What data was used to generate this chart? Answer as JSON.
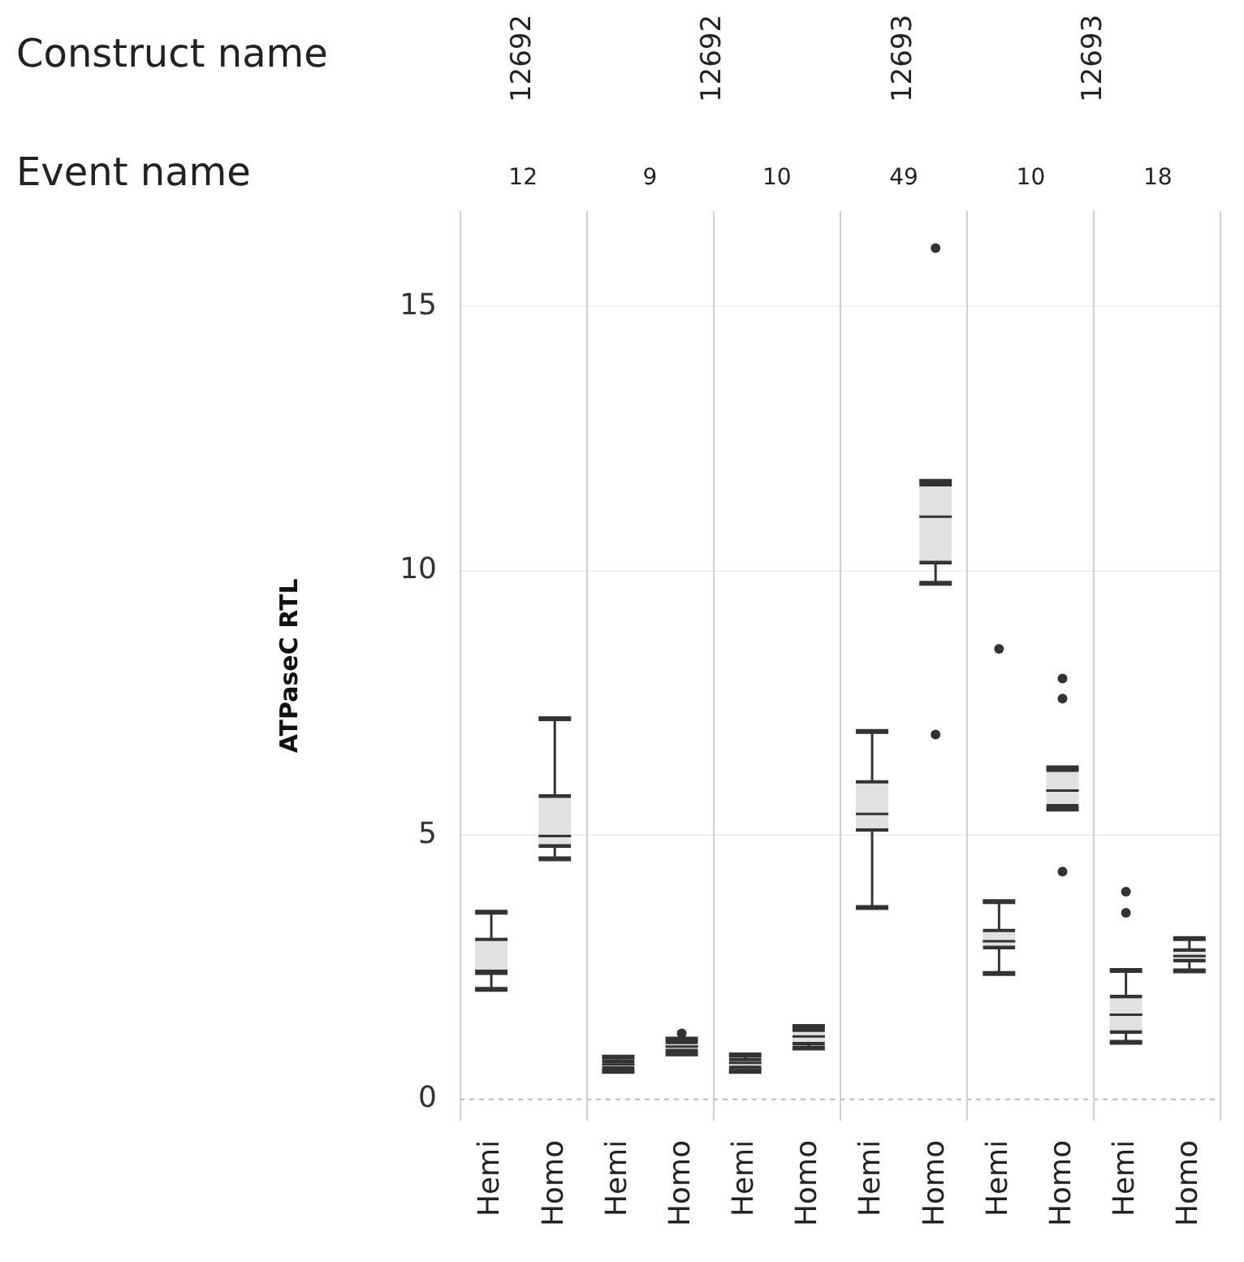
{
  "chart_data": {
    "type": "box",
    "ylabel": "ATPaseC RTL",
    "categories": [
      "Hemi",
      "Homo",
      "Hemi",
      "Homo",
      "Hemi",
      "Homo",
      "Hemi",
      "Homo",
      "Hemi",
      "Homo",
      "Hemi",
      "Homo"
    ],
    "annotations": [
      "Construct name",
      "Event name",
      "12692",
      "12692",
      "12693",
      "12693",
      "12",
      "9",
      "10",
      "49",
      "10",
      "18"
    ],
    "ylim": [
      -0.4,
      16.8
    ],
    "yticks": [
      0,
      5,
      10,
      15
    ],
    "grid": "y",
    "legend": false,
    "ref_lines": [
      {
        "axis": "y",
        "value": 0,
        "color": "#bbbbbb",
        "line_style": "dashed"
      }
    ],
    "series": [
      {
        "color": "#333333",
        "boxes": [
          {
            "low": 2.08,
            "q1": 2.36,
            "median": 2.43,
            "q3": 3.05,
            "high": 3.54
          },
          {
            "low": 4.55,
            "q1": 4.77,
            "median": 4.98,
            "q3": 5.76,
            "high": 7.2
          },
          {
            "low": 0.53,
            "q1": 0.57,
            "median": 0.66,
            "q3": 0.74,
            "high": 0.8
          },
          {
            "low": 0.86,
            "q1": 0.9,
            "median": 1.0,
            "q3": 1.1,
            "high": 1.14,
            "outliers": [
              1.25
            ]
          },
          {
            "low": 0.53,
            "q1": 0.58,
            "median": 0.69,
            "q3": 0.78,
            "high": 0.84
          },
          {
            "low": 0.97,
            "q1": 1.03,
            "median": 1.19,
            "q3": 1.33,
            "high": 1.38
          },
          {
            "low": 3.63,
            "q1": 5.07,
            "median": 5.4,
            "q3": 6.03,
            "high": 6.96
          },
          {
            "low": 9.76,
            "q1": 10.13,
            "median": 11.02,
            "q3": 11.65,
            "high": 11.69,
            "outliers": [
              16.1,
              6.9
            ]
          },
          {
            "low": 2.38,
            "q1": 2.85,
            "median": 2.99,
            "q3": 3.22,
            "high": 3.74,
            "outliers": [
              8.52
            ]
          },
          {
            "low": 5.49,
            "q1": 5.53,
            "median": 5.84,
            "q3": 6.25,
            "high": 6.27,
            "outliers": [
              7.96,
              7.58,
              4.31
            ]
          },
          {
            "low": 1.08,
            "q1": 1.25,
            "median": 1.6,
            "q3": 1.97,
            "high": 2.44,
            "outliers": [
              3.93,
              3.53
            ]
          },
          {
            "low": 2.43,
            "q1": 2.6,
            "median": 2.71,
            "q3": 2.85,
            "high": 3.04
          }
        ]
      }
    ]
  }
}
